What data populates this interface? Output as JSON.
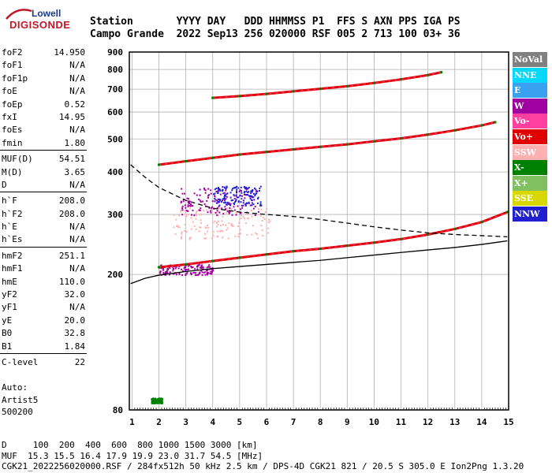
{
  "logo": {
    "line1": "Lowell",
    "line2": "DIGISONDE"
  },
  "header": {
    "row1": "Station       YYYY DAY   DDD HHMMSS P1  FFS S AXN PPS IGA PS",
    "row2": "Campo Grande  2022 Sep13 256 020000 RSF 005 2 713 100 03+ 36"
  },
  "params": {
    "group1": [
      {
        "name": "foF2",
        "value": "14.950"
      },
      {
        "name": "foF1",
        "value": "N/A"
      },
      {
        "name": "foF1p",
        "value": "N/A"
      },
      {
        "name": "foE",
        "value": "N/A"
      },
      {
        "name": "foEp",
        "value": "0.52"
      },
      {
        "name": "fxI",
        "value": "14.95"
      },
      {
        "name": "foEs",
        "value": "N/A"
      },
      {
        "name": "fmin",
        "value": "1.80"
      }
    ],
    "group2": [
      {
        "name": "MUF(D)",
        "value": "54.51"
      },
      {
        "name": "M(D)",
        "value": "3.65"
      },
      {
        "name": "D",
        "value": "N/A"
      }
    ],
    "group3": [
      {
        "name": "h`F",
        "value": "208.0"
      },
      {
        "name": "h`F2",
        "value": "208.0"
      },
      {
        "name": "h`E",
        "value": "N/A"
      },
      {
        "name": "h`Es",
        "value": "N/A"
      }
    ],
    "group4": [
      {
        "name": "hmF2",
        "value": "251.1"
      },
      {
        "name": "hmF1",
        "value": "N/A"
      },
      {
        "name": "hmE",
        "value": "110.0"
      },
      {
        "name": "yF2",
        "value": "32.0"
      },
      {
        "name": "yF1",
        "value": "N/A"
      },
      {
        "name": "yE",
        "value": "20.0"
      },
      {
        "name": "B0",
        "value": "32.8"
      },
      {
        "name": "B1",
        "value": "1.84"
      }
    ],
    "group5": [
      {
        "name": "C-level",
        "value": "22"
      }
    ]
  },
  "auto": {
    "line1": "Auto:",
    "line2": "Artist5",
    "line3": "500200"
  },
  "footer": {
    "line1": "D     100  200  400  600  800 1000 1500 3000 [km]",
    "line2": "MUF  15.3 15.5 16.4 17.9 19.9 23.0 31.7 54.5 [MHz]",
    "line3": "CGK21_2022256020000.RSF / 284fx512h 50 kHz 2.5 km / DPS-4D CGK21 821 / 20.5 S 305.0 E Ion2Png 1.3.20"
  },
  "legend": [
    {
      "label": "NoVal",
      "color": "#808080"
    },
    {
      "label": "NNE",
      "color": "#00d8ff"
    },
    {
      "label": "E",
      "color": "#3aa0f0"
    },
    {
      "label": "W",
      "color": "#a000a0"
    },
    {
      "label": "Vo-",
      "color": "#ff40a0"
    },
    {
      "label": "Vo+",
      "color": "#e00000"
    },
    {
      "label": "SSW",
      "color": "#ffb0b0"
    },
    {
      "label": "X-",
      "color": "#008000"
    },
    {
      "label": "X+",
      "color": "#80c060"
    },
    {
      "label": "SSE",
      "color": "#d8d800"
    },
    {
      "label": "NNW",
      "color": "#2020d0"
    }
  ],
  "chart_data": {
    "type": "scatter",
    "xlabel": "",
    "ylabel": "",
    "xlim": [
      0.9,
      15
    ],
    "ylim": [
      80,
      900
    ],
    "y_scale": "log",
    "grid": true,
    "x_ticks": [
      "1",
      "2",
      "3",
      "4",
      "5",
      "6",
      "7",
      "8",
      "9",
      "10",
      "11",
      "12",
      "13",
      "14",
      "15"
    ],
    "y_ticks": [
      "80",
      "200",
      "300",
      "400",
      "500",
      "600",
      "700",
      "800",
      "900"
    ],
    "traces": [
      {
        "name": "O-trace F2 (1st hop)",
        "color": "#e00000",
        "x": [
          2.0,
          3.0,
          4.0,
          5.0,
          6.0,
          7.0,
          8.0,
          9.0,
          10.0,
          11.0,
          12.0,
          13.0,
          14.0,
          14.95
        ],
        "y": [
          210,
          214,
          219,
          224,
          229,
          234,
          238,
          243,
          248,
          254,
          262,
          272,
          285,
          305
        ]
      },
      {
        "name": "F2 (2nd hop)",
        "color": "#e00000",
        "x": [
          2.0,
          3.0,
          4.0,
          5.0,
          6.0,
          7.0,
          8.0,
          9.0,
          10.0,
          11.0,
          12.0,
          13.0,
          14.0,
          14.5
        ],
        "y": [
          420,
          430,
          440,
          450,
          458,
          466,
          474,
          482,
          492,
          502,
          515,
          530,
          548,
          560
        ]
      },
      {
        "name": "F2 (3rd hop)",
        "color": "#e00000",
        "x": [
          4.0,
          5.0,
          6.0,
          7.0,
          8.0,
          9.0,
          10.0,
          11.0,
          12.0,
          12.5
        ],
        "y": [
          660,
          668,
          678,
          690,
          702,
          714,
          730,
          748,
          770,
          785
        ]
      },
      {
        "name": "true-height profile",
        "style": "solid",
        "color": "#000000",
        "x": [
          0.95,
          1.5,
          2.0,
          3.0,
          4.0,
          5.0,
          6.0,
          7.0,
          8.0,
          9.0,
          10.0,
          11.0,
          12.0,
          13.0,
          14.0,
          14.95
        ],
        "y": [
          188,
          195,
          199,
          204,
          208,
          211,
          214,
          217,
          220,
          224,
          228,
          232,
          236,
          240,
          245,
          251
        ]
      },
      {
        "name": "model profile",
        "style": "dashed",
        "color": "#000000",
        "x": [
          0.95,
          1.5,
          2.0,
          3.0,
          4.0,
          5.0,
          6.0,
          7.0,
          8.0,
          9.0,
          10.0,
          11.0,
          12.0,
          13.0,
          14.0,
          14.95
        ],
        "y": [
          420,
          385,
          360,
          330,
          313,
          305,
          300,
          296,
          290,
          283,
          276,
          270,
          265,
          262,
          260,
          258
        ]
      }
    ],
    "clusters": [
      {
        "color": "#ffb0b0",
        "xrange": [
          2.5,
          6.2
        ],
        "yrange": [
          255,
          315
        ]
      },
      {
        "color": "#a000a0",
        "xrange": [
          2.8,
          5.7
        ],
        "yrange": [
          300,
          360
        ]
      },
      {
        "color": "#2020d0",
        "xrange": [
          4.0,
          5.8
        ],
        "yrange": [
          320,
          365
        ]
      },
      {
        "color": "#a000a0",
        "xrange": [
          2.0,
          4.0
        ],
        "yrange": [
          200,
          215
        ]
      },
      {
        "color": "#008000",
        "xrange": [
          1.7,
          2.1
        ],
        "yrange": [
          84,
          87
        ]
      }
    ]
  }
}
